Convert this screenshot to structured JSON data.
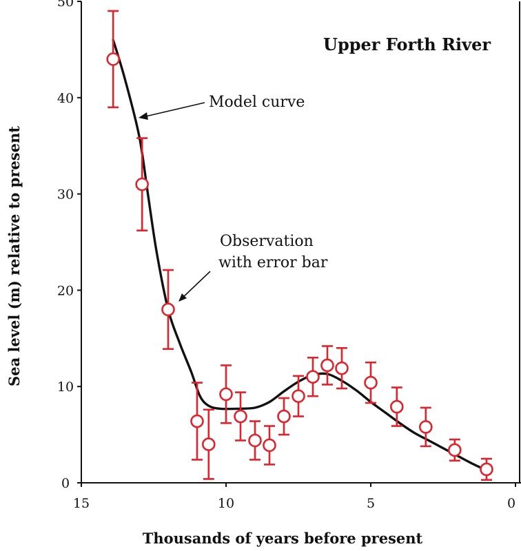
{
  "chart_data": {
    "type": "scatter",
    "title": "Upper Forth River",
    "xlabel": "Thousands of years before present",
    "ylabel": "Sea level (m) relative to present",
    "xlim": [
      15,
      0
    ],
    "ylim": [
      0,
      50
    ],
    "x_ticks": [
      15,
      10,
      5,
      0
    ],
    "y_ticks": [
      0,
      10,
      20,
      30,
      40,
      50
    ],
    "grid": false,
    "legend": "none",
    "series": [
      {
        "kind": "observation",
        "color": "#e0222a",
        "points": [
          {
            "x": 13.9,
            "y": 44.0,
            "err": 5.0
          },
          {
            "x": 12.9,
            "y": 31.0,
            "err": 4.8
          },
          {
            "x": 12.0,
            "y": 18.0,
            "err": 4.1
          },
          {
            "x": 11.0,
            "y": 6.4,
            "err": 4.0
          },
          {
            "x": 10.6,
            "y": 4.0,
            "err": 3.6
          },
          {
            "x": 10.0,
            "y": 9.2,
            "err": 3.0
          },
          {
            "x": 9.5,
            "y": 6.9,
            "err": 2.5
          },
          {
            "x": 9.0,
            "y": 4.4,
            "err": 2.0
          },
          {
            "x": 8.5,
            "y": 3.9,
            "err": 2.0
          },
          {
            "x": 8.0,
            "y": 6.9,
            "err": 1.9
          },
          {
            "x": 7.5,
            "y": 9.0,
            "err": 2.1
          },
          {
            "x": 7.0,
            "y": 11.0,
            "err": 2.0
          },
          {
            "x": 6.5,
            "y": 12.2,
            "err": 2.0
          },
          {
            "x": 6.0,
            "y": 11.9,
            "err": 2.1
          },
          {
            "x": 5.0,
            "y": 10.4,
            "err": 2.1
          },
          {
            "x": 4.1,
            "y": 7.9,
            "err": 2.0
          },
          {
            "x": 3.1,
            "y": 5.8,
            "err": 2.0
          },
          {
            "x": 2.1,
            "y": 3.4,
            "err": 1.1
          },
          {
            "x": 1.0,
            "y": 1.4,
            "err": 1.1
          }
        ]
      },
      {
        "kind": "model",
        "color": "#111111",
        "points": [
          {
            "x": 13.9,
            "y": 46.0
          },
          {
            "x": 13.5,
            "y": 42.0
          },
          {
            "x": 13.0,
            "y": 36.0
          },
          {
            "x": 12.7,
            "y": 30.0
          },
          {
            "x": 12.4,
            "y": 24.0
          },
          {
            "x": 12.0,
            "y": 18.0
          },
          {
            "x": 11.6,
            "y": 14.5
          },
          {
            "x": 11.2,
            "y": 11.5
          },
          {
            "x": 10.9,
            "y": 9.0
          },
          {
            "x": 10.6,
            "y": 8.0
          },
          {
            "x": 10.2,
            "y": 7.7
          },
          {
            "x": 9.6,
            "y": 7.7
          },
          {
            "x": 9.0,
            "y": 7.8
          },
          {
            "x": 8.5,
            "y": 8.4
          },
          {
            "x": 8.0,
            "y": 9.5
          },
          {
            "x": 7.5,
            "y": 10.5
          },
          {
            "x": 7.0,
            "y": 11.2
          },
          {
            "x": 6.5,
            "y": 11.3
          },
          {
            "x": 6.0,
            "y": 10.6
          },
          {
            "x": 5.5,
            "y": 9.6
          },
          {
            "x": 5.0,
            "y": 8.4
          },
          {
            "x": 4.5,
            "y": 7.3
          },
          {
            "x": 4.0,
            "y": 6.2
          },
          {
            "x": 3.5,
            "y": 5.2
          },
          {
            "x": 3.0,
            "y": 4.4
          },
          {
            "x": 2.5,
            "y": 3.6
          },
          {
            "x": 2.0,
            "y": 2.8
          },
          {
            "x": 1.5,
            "y": 2.0
          },
          {
            "x": 1.0,
            "y": 1.3
          }
        ]
      }
    ],
    "annotations": [
      {
        "id": "model",
        "text_lines": [
          "Model curve"
        ],
        "target": {
          "x": 13.0,
          "y": 38.0
        }
      },
      {
        "id": "observation",
        "text_lines": [
          "Observation",
          "with error bar"
        ],
        "target": {
          "x": 11.8,
          "y": 19.0
        }
      }
    ]
  }
}
